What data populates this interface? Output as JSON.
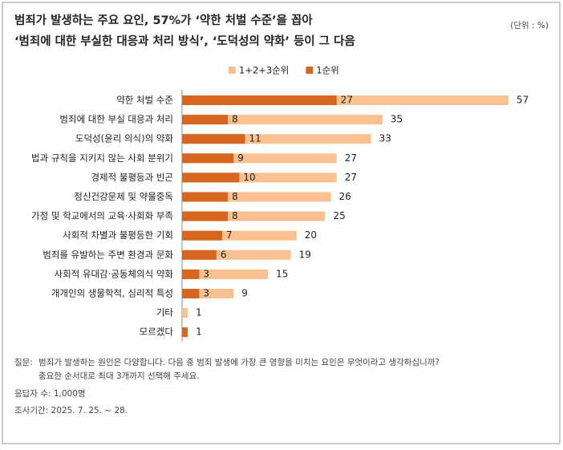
{
  "chart_data": {
    "type": "bar",
    "orientation": "horizontal",
    "overlap": true,
    "title": [
      "범죄가 발생하는 주요 요인, 57%가 ‘약한 처벌 수준’을 꼽아",
      "‘범죄에 대한 부실한 대응과 처리 방식’, ‘도덕성의 약화’ 등이 그 다음"
    ],
    "unit": "(단위 : %)",
    "categories": [
      "약한 처벌 수준",
      "범죄에 대한 부실 대응과 처리",
      "도덕성(윤리 의식)의 약화",
      "법과 규칙을 지키지 않는 사회 분위기",
      "경제적 불평등과 빈곤",
      "정신건강문제 및 약물중독",
      "가정 및 학교에서의 교육·사회화 부족",
      "사회적 차별과 불평등한 기회",
      "범죄를 유발하는 주변 환경과 문화",
      "사회적 유대감·공동체의식 약화",
      "개개인의 생물학적, 심리적 특성",
      "기타",
      "모르겠다"
    ],
    "series": [
      {
        "name": "1+2+3순위",
        "color": "#f9c090",
        "values": [
          57,
          35,
          33,
          27,
          27,
          26,
          25,
          20,
          19,
          15,
          9,
          1,
          1
        ]
      },
      {
        "name": "1순위",
        "color": "#d6661d",
        "values": [
          27,
          8,
          11,
          9,
          10,
          8,
          8,
          7,
          6,
          3,
          3,
          0,
          1
        ]
      }
    ],
    "legend": "top-right",
    "notes": {
      "question_label": "질문:",
      "question": [
        "범죄가 발생하는 원인은 다양합니다. 다음 중 범죄 발생에 가장 큰 영향을 미치는 요인은 무엇이라고 생각하십니까?",
        "중요한 순서대로 최대 3개까지 선택해 주세요."
      ],
      "respondents": "응답자 수: 1,000명",
      "period": "조사기간: 2025. 7. 25. ~ 28."
    }
  }
}
